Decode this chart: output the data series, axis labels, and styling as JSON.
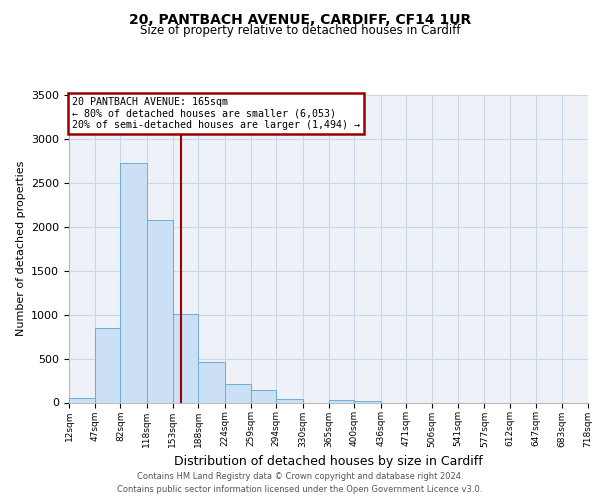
{
  "title": "20, PANTBACH AVENUE, CARDIFF, CF14 1UR",
  "subtitle": "Size of property relative to detached houses in Cardiff",
  "xlabel": "Distribution of detached houses by size in Cardiff",
  "ylabel": "Number of detached properties",
  "bin_edges": [
    12,
    47,
    82,
    118,
    153,
    188,
    224,
    259,
    294,
    330,
    365,
    400,
    436,
    471,
    506,
    541,
    577,
    612,
    647,
    683,
    718
  ],
  "bin_heights": [
    55,
    850,
    2730,
    2075,
    1005,
    460,
    205,
    145,
    45,
    0,
    30,
    20,
    0,
    0,
    0,
    0,
    0,
    0,
    0,
    0
  ],
  "bar_fill": "#cce0f5",
  "bar_edge": "#6aaed6",
  "property_size": 165,
  "annotation_line_color": "#990000",
  "annotation_box_edge_color": "#990000",
  "annotation_text_line1": "20 PANTBACH AVENUE: 165sqm",
  "annotation_text_line2": "← 80% of detached houses are smaller (6,053)",
  "annotation_text_line3": "20% of semi-detached houses are larger (1,494) →",
  "grid_color": "#c8d8ea",
  "background_color": "#eef2f8",
  "ylim": [
    0,
    3500
  ],
  "yticks": [
    0,
    500,
    1000,
    1500,
    2000,
    2500,
    3000,
    3500
  ],
  "footer_line1": "Contains HM Land Registry data © Crown copyright and database right 2024.",
  "footer_line2": "Contains public sector information licensed under the Open Government Licence v3.0."
}
